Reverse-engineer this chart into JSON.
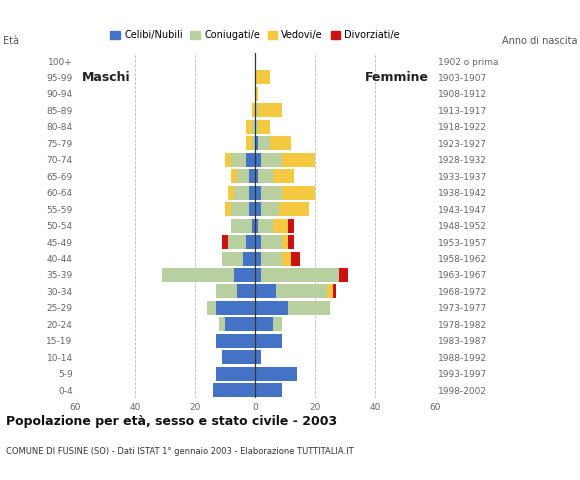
{
  "age_groups": [
    "0-4",
    "5-9",
    "10-14",
    "15-19",
    "20-24",
    "25-29",
    "30-34",
    "35-39",
    "40-44",
    "45-49",
    "50-54",
    "55-59",
    "60-64",
    "65-69",
    "70-74",
    "75-79",
    "80-84",
    "85-89",
    "90-94",
    "95-99",
    "100+"
  ],
  "birth_years": [
    "1998-2002",
    "1993-1997",
    "1988-1992",
    "1983-1987",
    "1978-1982",
    "1973-1977",
    "1968-1972",
    "1963-1967",
    "1958-1962",
    "1953-1957",
    "1948-1952",
    "1943-1947",
    "1938-1942",
    "1933-1937",
    "1928-1932",
    "1923-1927",
    "1918-1922",
    "1913-1917",
    "1908-1912",
    "1903-1907",
    "1902 o prima"
  ],
  "colors": {
    "celibi": "#4472c4",
    "coniugati": "#b8d0a0",
    "vedovi": "#f5c842",
    "divorziati": "#cc1111"
  },
  "males": {
    "celibi": [
      14,
      13,
      11,
      13,
      10,
      13,
      6,
      7,
      4,
      3,
      1,
      2,
      2,
      2,
      3,
      0,
      0,
      0,
      0,
      0,
      0
    ],
    "coniugati": [
      0,
      0,
      0,
      0,
      2,
      3,
      7,
      24,
      7,
      6,
      7,
      6,
      5,
      4,
      5,
      1,
      1,
      0,
      0,
      0,
      0
    ],
    "vedovi": [
      0,
      0,
      0,
      0,
      0,
      0,
      0,
      0,
      0,
      0,
      0,
      2,
      2,
      2,
      2,
      2,
      2,
      1,
      0,
      0,
      0
    ],
    "divorziati": [
      0,
      0,
      0,
      0,
      0,
      0,
      0,
      0,
      0,
      2,
      0,
      0,
      0,
      0,
      0,
      0,
      0,
      0,
      0,
      0,
      0
    ]
  },
  "females": {
    "celibi": [
      9,
      14,
      2,
      9,
      6,
      11,
      7,
      2,
      2,
      2,
      1,
      2,
      2,
      1,
      2,
      1,
      0,
      0,
      0,
      0,
      0
    ],
    "coniugati": [
      0,
      0,
      0,
      0,
      3,
      14,
      17,
      26,
      7,
      7,
      5,
      6,
      7,
      5,
      7,
      4,
      1,
      1,
      0,
      0,
      0
    ],
    "vedovi": [
      0,
      0,
      0,
      0,
      0,
      0,
      2,
      0,
      3,
      2,
      5,
      10,
      11,
      7,
      11,
      7,
      4,
      8,
      1,
      5,
      0
    ],
    "divorziati": [
      0,
      0,
      0,
      0,
      0,
      0,
      1,
      3,
      3,
      2,
      2,
      0,
      0,
      0,
      0,
      0,
      0,
      0,
      0,
      0,
      0
    ]
  },
  "title": "Popolazione per età, sesso e stato civile - 2003",
  "subtitle": "COMUNE DI FUSINE (SO) - Dati ISTAT 1° gennaio 2003 - Elaborazione TUTTITALIA.IT",
  "xlim": 60,
  "xlabel_left": "Maschi",
  "xlabel_right": "Femmine",
  "ylabel_left": "Età",
  "ylabel_right": "Anno di nascita",
  "legend_labels": [
    "Celibi/Nubili",
    "Coniugati/e",
    "Vedovi/e",
    "Divorziati/e"
  ],
  "background_color": "#ffffff",
  "grid_color": "#bbbbbb"
}
